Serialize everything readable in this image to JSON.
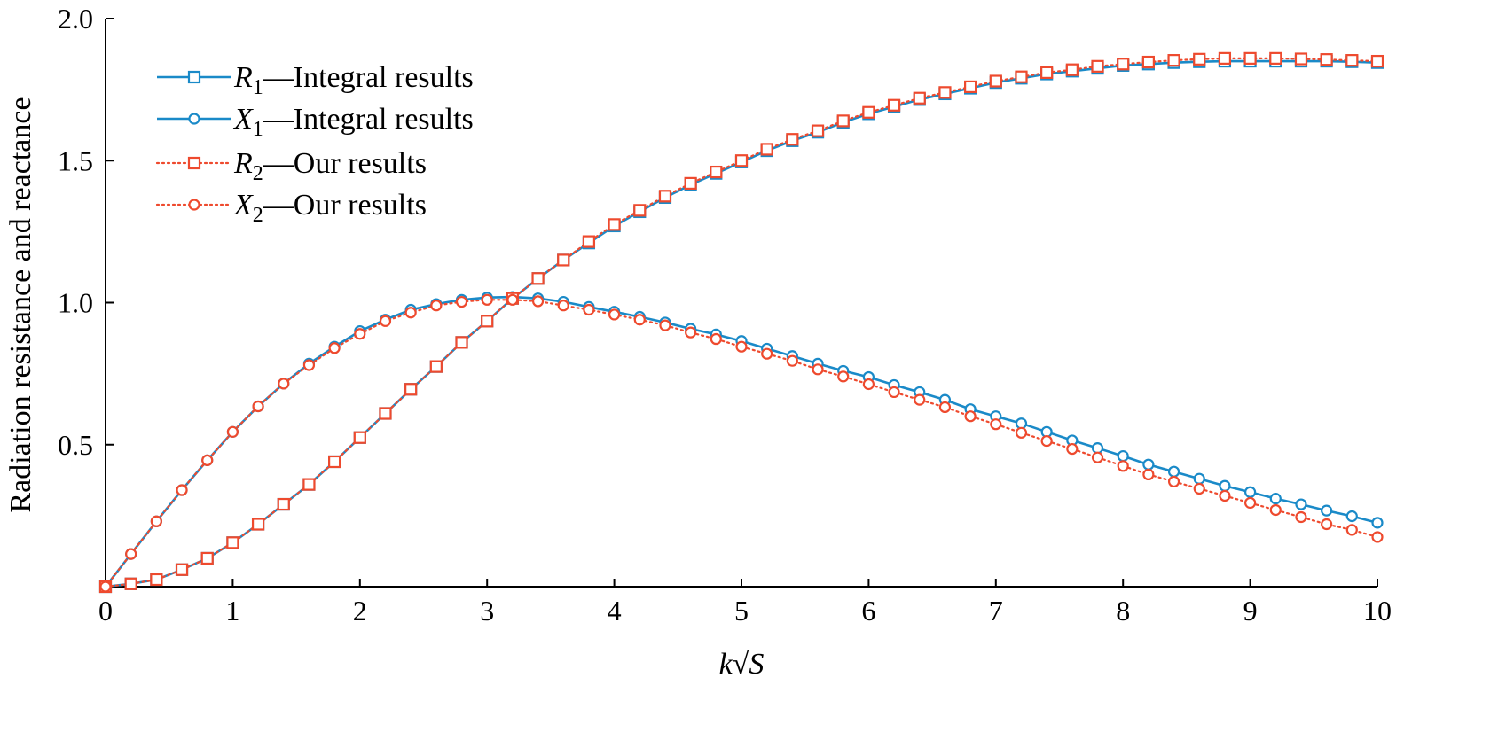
{
  "colors": {
    "integral": "#1a8ac8",
    "ours": "#ee4a2e",
    "axis": "#000000"
  },
  "chart_data": {
    "type": "line",
    "xlabel": "k√S",
    "ylabel": "Radiation resistance and reactance",
    "xlim": [
      0,
      10
    ],
    "ylim": [
      0,
      2.0
    ],
    "xticks": [
      "0",
      "1",
      "2",
      "3",
      "4",
      "5",
      "6",
      "7",
      "8",
      "9",
      "10"
    ],
    "yticks": [
      "0.5",
      "1.0",
      "1.5",
      "2.0"
    ],
    "legend": {
      "position": "top-left"
    },
    "x": [
      0,
      0.2,
      0.4,
      0.6,
      0.8,
      1.0,
      1.2,
      1.4,
      1.6,
      1.8,
      2.0,
      2.2,
      2.4,
      2.6,
      2.8,
      3.0,
      3.2,
      3.4,
      3.6,
      3.8,
      4.0,
      4.2,
      4.4,
      4.6,
      4.8,
      5.0,
      5.2,
      5.4,
      5.6,
      5.8,
      6.0,
      6.2,
      6.4,
      6.6,
      6.8,
      7.0,
      7.2,
      7.4,
      7.6,
      7.8,
      8.0,
      8.2,
      8.4,
      8.6,
      8.8,
      9.0,
      9.2,
      9.4,
      9.6,
      9.8,
      10.0
    ],
    "series": [
      {
        "name_main": "R",
        "name_sub": "1",
        "name_rest": "—Integral results",
        "marker": "square",
        "line": "solid",
        "color_key": "integral",
        "values": [
          0,
          0.01,
          0.025,
          0.06,
          0.1,
          0.155,
          0.22,
          0.29,
          0.36,
          0.44,
          0.525,
          0.61,
          0.695,
          0.775,
          0.86,
          0.935,
          1.015,
          1.085,
          1.15,
          1.21,
          1.27,
          1.32,
          1.37,
          1.415,
          1.455,
          1.495,
          1.535,
          1.57,
          1.6,
          1.635,
          1.665,
          1.69,
          1.715,
          1.735,
          1.755,
          1.775,
          1.79,
          1.805,
          1.815,
          1.825,
          1.835,
          1.84,
          1.845,
          1.848,
          1.85,
          1.85,
          1.85,
          1.85,
          1.85,
          1.848,
          1.845
        ]
      },
      {
        "name_main": "X",
        "name_sub": "1",
        "name_rest": "—Integral results",
        "marker": "circle",
        "line": "solid",
        "color_key": "integral",
        "values": [
          0,
          0.115,
          0.23,
          0.34,
          0.445,
          0.545,
          0.635,
          0.715,
          0.785,
          0.845,
          0.9,
          0.94,
          0.975,
          0.995,
          1.01,
          1.018,
          1.02,
          1.015,
          1.003,
          0.985,
          0.968,
          0.95,
          0.93,
          0.908,
          0.888,
          0.865,
          0.838,
          0.812,
          0.785,
          0.76,
          0.738,
          0.71,
          0.685,
          0.658,
          0.625,
          0.6,
          0.575,
          0.545,
          0.515,
          0.488,
          0.46,
          0.43,
          0.405,
          0.38,
          0.355,
          0.333,
          0.31,
          0.29,
          0.268,
          0.248,
          0.225
        ]
      },
      {
        "name_main": "R",
        "name_sub": "2",
        "name_rest": "—Our results",
        "marker": "square",
        "line": "dotted",
        "color_key": "ours",
        "values": [
          0,
          0.01,
          0.025,
          0.06,
          0.1,
          0.155,
          0.22,
          0.29,
          0.36,
          0.44,
          0.525,
          0.61,
          0.695,
          0.775,
          0.86,
          0.935,
          1.015,
          1.085,
          1.15,
          1.215,
          1.275,
          1.325,
          1.375,
          1.42,
          1.46,
          1.5,
          1.54,
          1.575,
          1.605,
          1.64,
          1.67,
          1.695,
          1.72,
          1.74,
          1.76,
          1.78,
          1.795,
          1.81,
          1.82,
          1.832,
          1.84,
          1.847,
          1.853,
          1.857,
          1.86,
          1.86,
          1.86,
          1.858,
          1.856,
          1.853,
          1.85
        ]
      },
      {
        "name_main": "X",
        "name_sub": "2",
        "name_rest": "—Our results",
        "marker": "circle",
        "line": "dotted",
        "color_key": "ours",
        "values": [
          0,
          0.115,
          0.23,
          0.34,
          0.445,
          0.545,
          0.635,
          0.715,
          0.78,
          0.84,
          0.89,
          0.935,
          0.965,
          0.99,
          1.003,
          1.01,
          1.01,
          1.005,
          0.99,
          0.975,
          0.958,
          0.94,
          0.92,
          0.895,
          0.872,
          0.845,
          0.82,
          0.795,
          0.765,
          0.74,
          0.713,
          0.685,
          0.658,
          0.632,
          0.6,
          0.572,
          0.542,
          0.513,
          0.485,
          0.455,
          0.425,
          0.395,
          0.37,
          0.345,
          0.32,
          0.295,
          0.27,
          0.245,
          0.22,
          0.2,
          0.175
        ]
      }
    ]
  }
}
